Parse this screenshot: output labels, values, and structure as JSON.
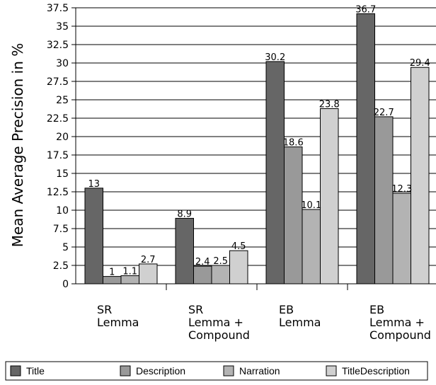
{
  "chart_data": {
    "type": "bar",
    "ylabel": "Mean Average Precision in %",
    "xlabel": "",
    "title": "",
    "ylim": [
      0,
      37.5
    ],
    "yticks": [
      "0",
      "2.5",
      "5",
      "7.5",
      "10",
      "12.5",
      "15",
      "17.5",
      "20",
      "22.5",
      "25",
      "27.5",
      "30",
      "32.5",
      "35",
      "37.5"
    ],
    "categories": [
      [
        "SR",
        "Lemma"
      ],
      [
        "SR",
        "Lemma +",
        "Compound"
      ],
      [
        "EB",
        "Lemma"
      ],
      [
        "EB",
        "Lemma +",
        "Compound"
      ]
    ],
    "series": [
      {
        "name": "Title",
        "values": [
          13,
          8.9,
          30.2,
          36.7
        ],
        "labels": [
          "13",
          "8.9",
          "30.2",
          "36.7"
        ],
        "color": "#666666"
      },
      {
        "name": "Description",
        "values": [
          1,
          2.4,
          18.6,
          22.7
        ],
        "labels": [
          "1",
          "2.4",
          "18.6",
          "22.7"
        ],
        "color": "#999999"
      },
      {
        "name": "Narration",
        "values": [
          1.1,
          2.5,
          10.1,
          12.3
        ],
        "labels": [
          "1.1",
          "2.5",
          "10.1",
          "12.3"
        ],
        "color": "#b3b3b3"
      },
      {
        "name": "TitleDescription",
        "values": [
          2.7,
          4.5,
          23.8,
          29.4
        ],
        "labels": [
          "2.7",
          "4.5",
          "23.8",
          "29.4"
        ],
        "color": "#d0d0d0"
      }
    ],
    "grid": true,
    "legend_position": "bottom"
  }
}
